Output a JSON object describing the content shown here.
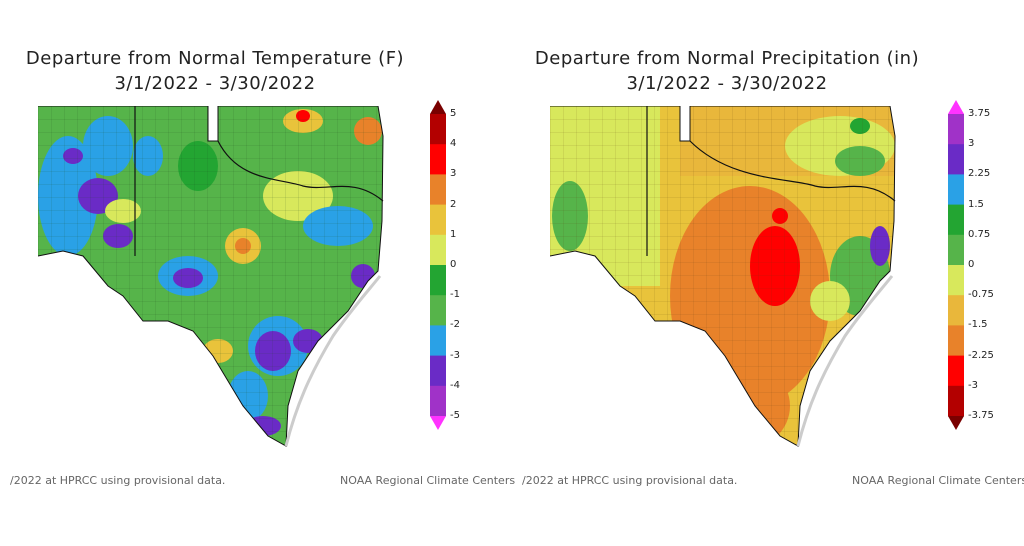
{
  "temperature": {
    "title_line1": "Departure from Normal Temperature (F)",
    "title_line2": "3/1/2022 - 3/30/2022",
    "legend_ticks": [
      "5",
      "4",
      "3",
      "2",
      "1",
      "0",
      "-1",
      "-2",
      "-3",
      "-4",
      "-5"
    ],
    "legend_colors": [
      "#7a0000",
      "#b30000",
      "#ff0000",
      "#e8822a",
      "#e9c33b",
      "#d8e85c",
      "#23a532",
      "#56b44a",
      "#2aa1e6",
      "#6a2bc6",
      "#a032c8",
      "#ff33ff"
    ],
    "footer_note": "/2022 at HPRCC using provisional data.",
    "footer_credit": "NOAA Regional Climate Centers"
  },
  "precipitation": {
    "title_line1": "Departure from Normal Precipitation (in)",
    "title_line2": "3/1/2022 - 3/30/2022",
    "legend_ticks": [
      "3.75",
      "3",
      "2.25",
      "1.5",
      "0.75",
      "0",
      "-0.75",
      "-1.5",
      "-2.25",
      "-3",
      "-3.75"
    ],
    "legend_colors": [
      "#ff33ff",
      "#a032c8",
      "#6a2bc6",
      "#2aa1e6",
      "#23a532",
      "#56b44a",
      "#d8e85c",
      "#e9b73b",
      "#e8822a",
      "#ff0000",
      "#b30000",
      "#7a0000"
    ],
    "footer_note": "/2022 at HPRCC using provisional data.",
    "footer_credit": "NOAA Regional Climate Centers"
  }
}
